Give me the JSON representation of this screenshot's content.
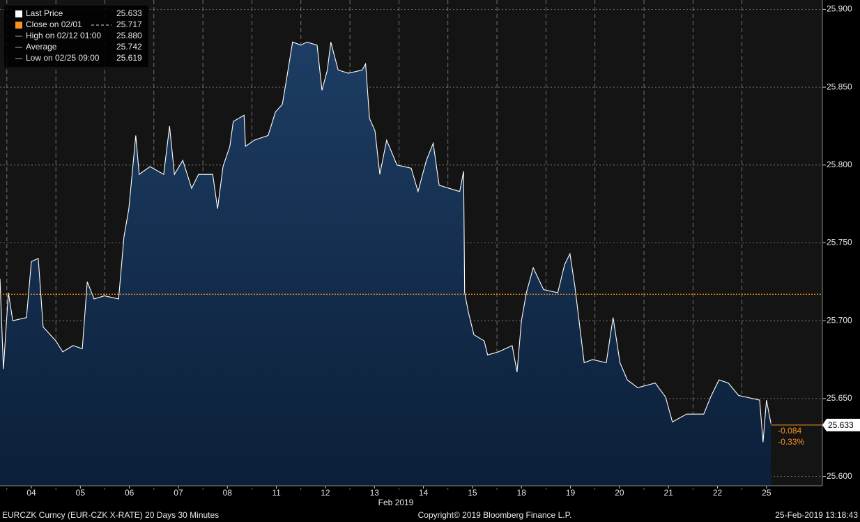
{
  "chart_data": {
    "type": "area",
    "x_label": "Feb 2019",
    "xlim": [
      -0.64,
      16.14
    ],
    "xticks": [
      {
        "value": 0,
        "label": "04"
      },
      {
        "value": 1,
        "label": "05"
      },
      {
        "value": 2,
        "label": "06"
      },
      {
        "value": 3,
        "label": "07"
      },
      {
        "value": 4,
        "label": "08"
      },
      {
        "value": 5,
        "label": "11"
      },
      {
        "value": 6,
        "label": "12"
      },
      {
        "value": 7,
        "label": "13"
      },
      {
        "value": 8,
        "label": "14"
      },
      {
        "value": 9,
        "label": "15"
      },
      {
        "value": 10,
        "label": "18"
      },
      {
        "value": 11,
        "label": "19"
      },
      {
        "value": 12,
        "label": "20"
      },
      {
        "value": 13,
        "label": "21"
      },
      {
        "value": 14,
        "label": "22"
      },
      {
        "value": 15,
        "label": "25"
      }
    ],
    "ylim": [
      25.594,
      25.906
    ],
    "yticks": [
      {
        "value": 25.6,
        "label": "25.600"
      },
      {
        "value": 25.65,
        "label": "25.650"
      },
      {
        "value": 25.7,
        "label": "25.700"
      },
      {
        "value": 25.75,
        "label": "25.750"
      },
      {
        "value": 25.8,
        "label": "25.800"
      },
      {
        "value": 25.85,
        "label": "25.850"
      },
      {
        "value": 25.9,
        "label": "25.900"
      }
    ],
    "grid": true,
    "x": [
      -0.64,
      -0.57,
      -0.47,
      -0.38,
      -0.1,
      0,
      0.14,
      0.24,
      0.5,
      0.64,
      0.85,
      1.04,
      1.14,
      1.28,
      1.49,
      1.78,
      1.89,
      1.99,
      2.13,
      2.2,
      2.42,
      2.7,
      2.82,
      2.92,
      3.09,
      3.27,
      3.41,
      3.7,
      3.8,
      3.91,
      4.05,
      4.12,
      4.34,
      4.37,
      4.55,
      4.83,
      4.98,
      5.12,
      5.19,
      5.33,
      5.5,
      5.62,
      5.83,
      5.93,
      6.04,
      6.11,
      6.26,
      6.47,
      6.75,
      6.82,
      6.9,
      7.01,
      7.11,
      7.25,
      7.46,
      7.75,
      7.89,
      8.06,
      8.2,
      8.32,
      8.53,
      8.74,
      8.82,
      8.84,
      8.92,
      9.03,
      9.24,
      9.31,
      9.53,
      9.81,
      9.91,
      10.0,
      10.1,
      10.24,
      10.45,
      10.74,
      10.88,
      10.99,
      11.09,
      11.28,
      11.45,
      11.73,
      11.87,
      12.01,
      12.16,
      12.37,
      12.73,
      12.94,
      13.08,
      13.37,
      13.72,
      13.86,
      14.03,
      14.22,
      14.43,
      14.86,
      14.93,
      15.0,
      15.09
    ],
    "series": [
      {
        "name": "Last Price",
        "color": "#ffffff",
        "fill": "#173559",
        "values": [
          25.727,
          25.669,
          25.718,
          25.7,
          25.702,
          25.738,
          25.74,
          25.696,
          25.687,
          25.68,
          25.684,
          25.682,
          25.725,
          25.714,
          25.716,
          25.714,
          25.754,
          25.772,
          25.819,
          25.794,
          25.799,
          25.794,
          25.825,
          25.794,
          25.803,
          25.785,
          25.794,
          25.794,
          25.772,
          25.799,
          25.812,
          25.828,
          25.832,
          25.812,
          25.816,
          25.819,
          25.834,
          25.839,
          25.852,
          25.879,
          25.877,
          25.879,
          25.877,
          25.848,
          25.861,
          25.879,
          25.861,
          25.859,
          25.861,
          25.865,
          25.83,
          25.822,
          25.794,
          25.816,
          25.8,
          25.798,
          25.783,
          25.803,
          25.814,
          25.787,
          25.785,
          25.783,
          25.796,
          25.718,
          25.705,
          25.691,
          25.687,
          25.678,
          25.68,
          25.684,
          25.667,
          25.7,
          25.718,
          25.734,
          25.72,
          25.718,
          25.736,
          25.743,
          25.722,
          25.673,
          25.675,
          25.673,
          25.702,
          25.673,
          25.662,
          25.657,
          25.66,
          25.651,
          25.635,
          25.64,
          25.64,
          25.651,
          25.662,
          25.66,
          25.652,
          25.649,
          25.622,
          25.649,
          25.634
        ]
      }
    ],
    "stats": [
      {
        "label": "Last Price",
        "value": 25.633,
        "color": "#ffffff"
      },
      {
        "label": "Close on 02/01",
        "value": 25.717,
        "color": "#f7931e"
      },
      {
        "label": "High on 02/12 01:00",
        "value": 25.88,
        "value_label": "25.880",
        "color": "#aaaaaa"
      },
      {
        "label": "Average",
        "value": 25.742,
        "color": "#aaaaaa"
      },
      {
        "label": "Low on 02/25 09:00",
        "value": 25.619,
        "color": "#aaaaaa"
      }
    ],
    "annotations": [
      "-0.084",
      "-0.33%"
    ],
    "footer": {
      "left": "EURCZK Curncy (EUR-CZK X-RATE) 20 Days 30 Minutes",
      "center": "Copyright© 2019 Bloomberg Finance L.P.",
      "right": "25-Feb-2019 13:18:43"
    }
  }
}
